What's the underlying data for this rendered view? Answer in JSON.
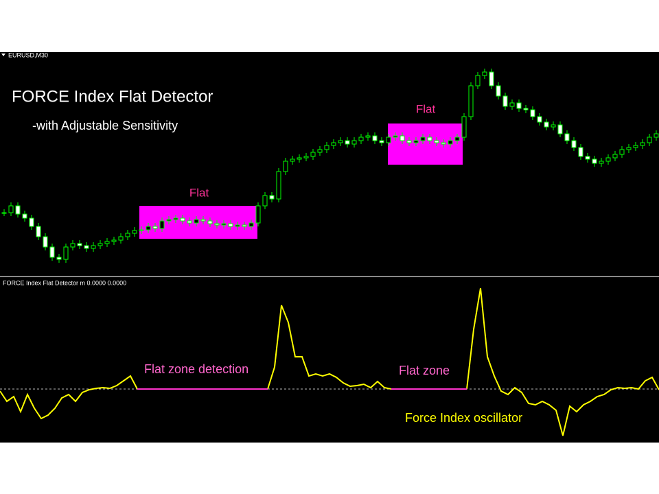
{
  "chart_data": [
    {
      "type": "candlestick",
      "label": "EURUSD,M30",
      "title": "FORCE Index Flat Detector",
      "subtitle": "-with Adjustable Sensitivity",
      "annotations": [
        "Flat",
        "Flat"
      ],
      "up_color": "#000000",
      "down_color": "#ffffff",
      "outline_color": "#00ff00",
      "values": [
        90,
        100,
        88,
        82,
        70,
        55,
        40,
        25,
        22,
        40,
        45,
        42,
        38,
        42,
        45,
        48,
        50,
        55,
        60,
        64,
        65,
        70,
        67,
        78,
        80,
        82,
        78,
        75,
        80,
        78,
        74,
        72,
        74,
        70,
        72,
        70,
        75,
        100,
        115,
        110,
        150,
        165,
        168,
        170,
        172,
        178,
        182,
        188,
        192,
        195,
        190,
        195,
        200,
        202,
        195,
        192,
        200,
        202,
        195,
        192,
        195,
        200,
        195,
        192,
        190,
        195,
        200,
        230,
        275,
        290,
        295,
        275,
        260,
        245,
        250,
        242,
        240,
        230,
        222,
        215,
        218,
        205,
        195,
        185,
        172,
        168,
        162,
        165,
        170,
        175,
        182,
        185,
        188,
        192,
        200,
        205
      ]
    },
    {
      "type": "line",
      "label": "FORCE Index Flat Detector m 0.0000 0.0000",
      "annotations": [
        "Flat zone detection",
        "Flat zone",
        "Force Index oscillator"
      ],
      "series": [
        {
          "color": "#ffff00",
          "values": [
            -3,
            -18,
            -11,
            -33,
            -8,
            -28,
            -43,
            -38,
            -28,
            -13,
            -8,
            -18,
            -5,
            -1,
            1,
            2,
            1,
            5,
            12,
            19,
            0,
            null,
            null,
            null,
            null,
            null,
            null,
            null,
            null,
            null,
            null,
            null,
            null,
            null,
            null,
            null,
            null,
            null,
            null,
            0,
            32,
            122,
            97,
            47,
            47,
            19,
            22,
            19,
            22,
            17,
            9,
            4,
            5,
            7,
            2,
            11,
            2,
            0,
            null,
            null,
            null,
            null,
            null,
            null,
            null,
            null,
            null,
            null,
            0,
            87,
            147,
            47,
            19,
            -3,
            -8,
            2,
            -5,
            -21,
            -23,
            -18,
            -23,
            -31,
            -68,
            -25,
            -33,
            -23,
            -18,
            -11,
            -8,
            -1,
            2,
            1,
            2,
            0,
            12,
            17,
            -1
          ]
        },
        {
          "color": "#ff33cc",
          "values": [
            null,
            null,
            null,
            null,
            null,
            null,
            null,
            null,
            null,
            null,
            null,
            null,
            null,
            null,
            null,
            null,
            null,
            null,
            null,
            null,
            0,
            0,
            0,
            0,
            0,
            0,
            0,
            0,
            0,
            0,
            0,
            0,
            0,
            0,
            0,
            0,
            0,
            0,
            0,
            0,
            null,
            null,
            null,
            null,
            null,
            null,
            null,
            null,
            null,
            null,
            null,
            null,
            null,
            null,
            null,
            null,
            null,
            0,
            0,
            0,
            0,
            0,
            0,
            0,
            0,
            0,
            0,
            0,
            0,
            null,
            null,
            null,
            null,
            null,
            null,
            null,
            null,
            null,
            null,
            null,
            null,
            null,
            null,
            null,
            null,
            null,
            null,
            null,
            null,
            null,
            null,
            null,
            null,
            null,
            null,
            null,
            null
          ]
        }
      ]
    }
  ]
}
